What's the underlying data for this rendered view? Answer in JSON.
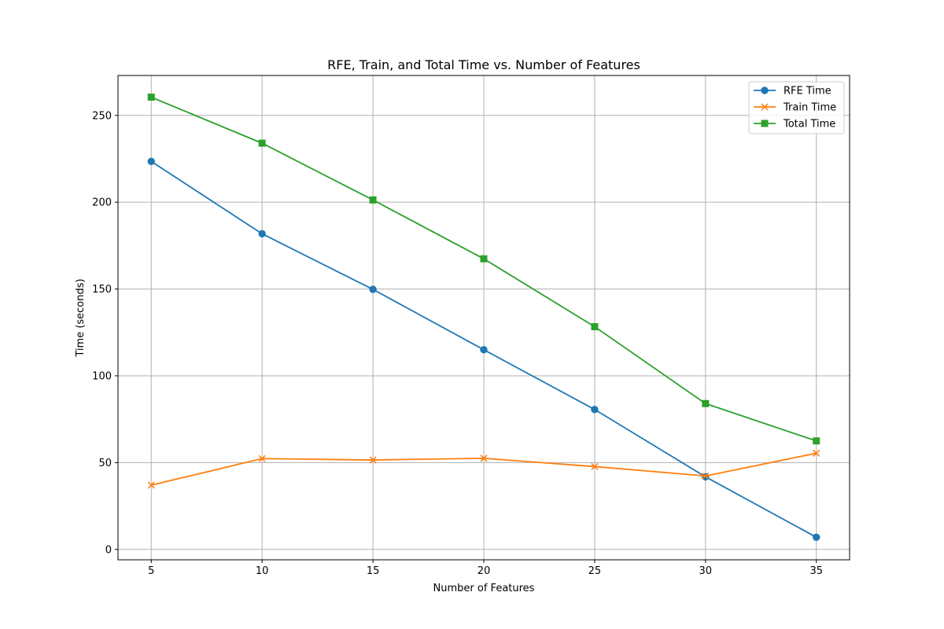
{
  "chart_data": {
    "type": "line",
    "title": "RFE, Train, and Total Time vs. Number of Features",
    "xlabel": "Number of Features",
    "ylabel": "Time (seconds)",
    "x": [
      5,
      10,
      15,
      20,
      25,
      30,
      35
    ],
    "xlim": [
      3.5,
      36.5
    ],
    "ylim": [
      -6,
      273
    ],
    "xticks": [
      5,
      10,
      15,
      20,
      25,
      30,
      35
    ],
    "yticks": [
      0,
      50,
      100,
      150,
      200,
      250
    ],
    "grid": true,
    "legend_position": "top-right",
    "series": [
      {
        "name": "RFE Time",
        "values": [
          223.5,
          181.8,
          149.8,
          115.0,
          80.6,
          41.8,
          7.0
        ],
        "color": "#1f77b4",
        "marker": "circle"
      },
      {
        "name": "Train Time",
        "values": [
          37.0,
          52.3,
          51.5,
          52.5,
          47.7,
          42.3,
          55.4
        ],
        "color": "#ff7f0e",
        "marker": "x"
      },
      {
        "name": "Total Time",
        "values": [
          260.5,
          234.0,
          201.3,
          167.4,
          128.3,
          84.0,
          62.5
        ],
        "color": "#2ca02c",
        "marker": "square"
      }
    ]
  }
}
